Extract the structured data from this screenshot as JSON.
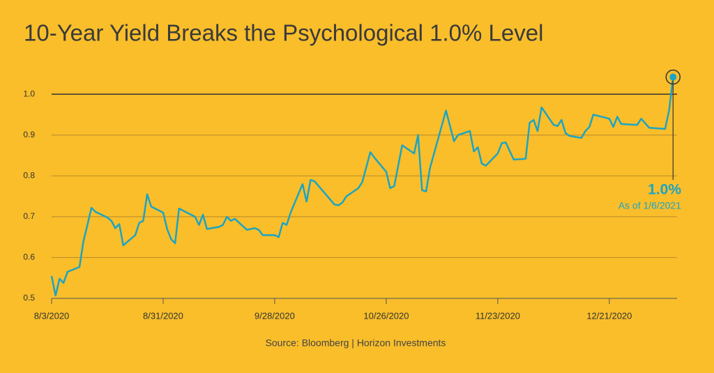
{
  "chart_data": {
    "type": "line",
    "title": "10-Year Yield Breaks the Psychological 1.0% Level",
    "source": "Source: Bloomberg | Horizon Investments",
    "annotation": {
      "label": "1.0%",
      "sublabel": "As of 1/6/2021"
    },
    "x": [
      "2020-08-03",
      "2020-08-04",
      "2020-08-05",
      "2020-08-06",
      "2020-08-07",
      "2020-08-10",
      "2020-08-11",
      "2020-08-12",
      "2020-08-13",
      "2020-08-14",
      "2020-08-17",
      "2020-08-18",
      "2020-08-19",
      "2020-08-20",
      "2020-08-21",
      "2020-08-24",
      "2020-08-25",
      "2020-08-26",
      "2020-08-27",
      "2020-08-28",
      "2020-08-31",
      "2020-09-01",
      "2020-09-02",
      "2020-09-03",
      "2020-09-04",
      "2020-09-08",
      "2020-09-09",
      "2020-09-10",
      "2020-09-11",
      "2020-09-14",
      "2020-09-15",
      "2020-09-16",
      "2020-09-17",
      "2020-09-18",
      "2020-09-21",
      "2020-09-23",
      "2020-09-24",
      "2020-09-25",
      "2020-09-28",
      "2020-09-29",
      "2020-09-30",
      "2020-10-01",
      "2020-10-02",
      "2020-10-05",
      "2020-10-06",
      "2020-10-07",
      "2020-10-08",
      "2020-10-13",
      "2020-10-14",
      "2020-10-15",
      "2020-10-16",
      "2020-10-19",
      "2020-10-20",
      "2020-10-22",
      "2020-10-23",
      "2020-10-26",
      "2020-10-27",
      "2020-10-28",
      "2020-10-30",
      "2020-11-02",
      "2020-11-03",
      "2020-11-04",
      "2020-11-05",
      "2020-11-06",
      "2020-11-10",
      "2020-11-12",
      "2020-11-13",
      "2020-11-16",
      "2020-11-17",
      "2020-11-18",
      "2020-11-19",
      "2020-11-20",
      "2020-11-23",
      "2020-11-24",
      "2020-11-25",
      "2020-11-27",
      "2020-11-30",
      "2020-12-01",
      "2020-12-02",
      "2020-12-03",
      "2020-12-04",
      "2020-12-07",
      "2020-12-08",
      "2020-12-09",
      "2020-12-10",
      "2020-12-11",
      "2020-12-14",
      "2020-12-15",
      "2020-12-16",
      "2020-12-17",
      "2020-12-21",
      "2020-12-22",
      "2020-12-23",
      "2020-12-24",
      "2020-12-28",
      "2020-12-29",
      "2020-12-31",
      "2021-01-04",
      "2021-01-05",
      "2021-01-06"
    ],
    "series": [
      {
        "name": "10-Year Yield",
        "color": "#1ba4c4",
        "values": [
          0.555,
          0.507,
          0.548,
          0.538,
          0.565,
          0.577,
          0.64,
          0.68,
          0.722,
          0.712,
          0.698,
          0.69,
          0.672,
          0.682,
          0.63,
          0.655,
          0.685,
          0.69,
          0.755,
          0.725,
          0.71,
          0.67,
          0.645,
          0.635,
          0.72,
          0.7,
          0.68,
          0.705,
          0.67,
          0.675,
          0.68,
          0.7,
          0.69,
          0.695,
          0.668,
          0.672,
          0.668,
          0.655,
          0.655,
          0.65,
          0.685,
          0.68,
          0.71,
          0.78,
          0.737,
          0.79,
          0.787,
          0.73,
          0.728,
          0.735,
          0.75,
          0.77,
          0.785,
          0.858,
          0.845,
          0.81,
          0.77,
          0.775,
          0.875,
          0.855,
          0.9,
          0.765,
          0.762,
          0.82,
          0.96,
          0.885,
          0.9,
          0.91,
          0.86,
          0.87,
          0.83,
          0.825,
          0.855,
          0.88,
          0.882,
          0.84,
          0.842,
          0.93,
          0.937,
          0.91,
          0.968,
          0.925,
          0.922,
          0.937,
          0.905,
          0.898,
          0.893,
          0.91,
          0.92,
          0.95,
          0.94,
          0.92,
          0.945,
          0.927,
          0.925,
          0.94,
          0.918,
          0.915,
          0.96,
          1.042
        ]
      }
    ],
    "xlim": [
      "2020-08-03",
      "2021-01-07"
    ],
    "xticks": [
      {
        "value": "2020-08-03",
        "label": "8/3/2020"
      },
      {
        "value": "2020-08-31",
        "label": "8/31/2020"
      },
      {
        "value": "2020-09-28",
        "label": "9/28/2020"
      },
      {
        "value": "2020-10-26",
        "label": "10/26/2020"
      },
      {
        "value": "2020-11-23",
        "label": "11/23/2020"
      },
      {
        "value": "2020-12-21",
        "label": "12/21/2020"
      }
    ],
    "ylim": [
      0.5,
      1.06
    ],
    "yticks": [
      0.5,
      0.6,
      0.7,
      0.8,
      0.9,
      {
        "value": 1,
        "label": "1.0"
      }
    ],
    "highlight_line": 1,
    "grid": true
  }
}
